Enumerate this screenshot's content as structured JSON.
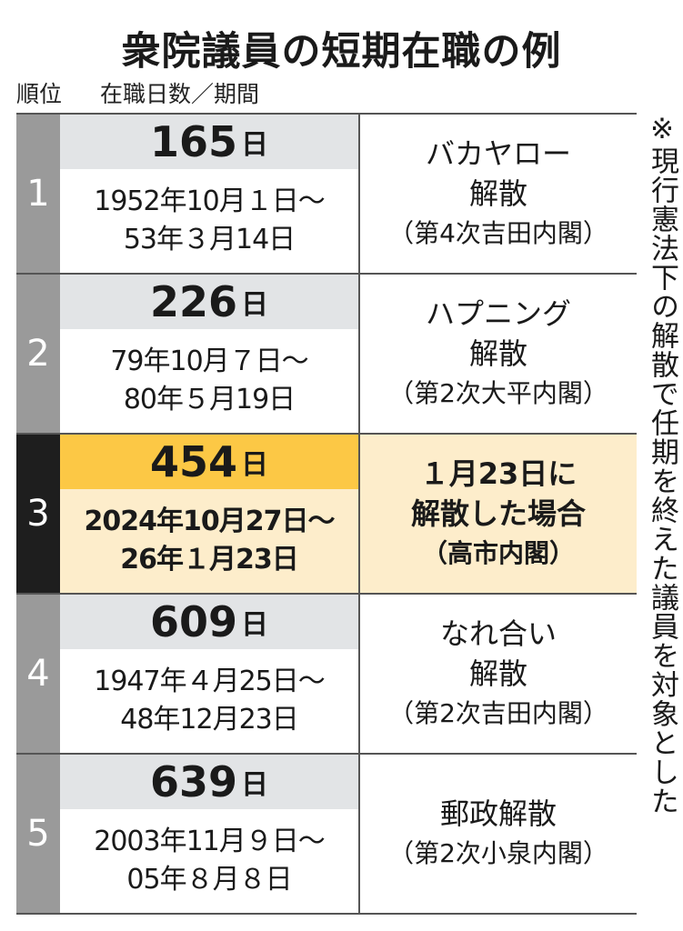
{
  "title": "衆院議員の短期在職の例",
  "headers": {
    "rank": "順位",
    "days_period": "在職日数／期間"
  },
  "note": "※現行憲法下の解散で任期を終えた議員を対象とした",
  "colors": {
    "highlight_rank": "#1e1e1e",
    "highlight_days": "#fcc845",
    "highlight_body": "#fdedcb",
    "rank_bg": "#9a9a9a",
    "days_bg": "#e2e4e6"
  },
  "chart_data": {
    "type": "table",
    "columns": [
      "順位",
      "在職日数／期間",
      ""
    ],
    "rows": [
      {
        "rank": "1",
        "days": "165",
        "unit": "日",
        "period_start": "1952年10月１日～",
        "period_end": "53年３月14日",
        "event": "バカヤロー",
        "event2": "解散",
        "cabinet": "（第4次吉田内閣）",
        "highlighted": false
      },
      {
        "rank": "2",
        "days": "226",
        "unit": "日",
        "period_start": "79年10月７日～",
        "period_end": "80年５月19日",
        "event": "ハプニング",
        "event2": "解散",
        "cabinet": "（第2次大平内閣）",
        "highlighted": false
      },
      {
        "rank": "3",
        "days": "454",
        "unit": "日",
        "period_start": "2024年10月27日～",
        "period_end": "26年１月23日",
        "event": "１月23日に",
        "event2": "解散した場合",
        "cabinet": "（高市内閣）",
        "highlighted": true
      },
      {
        "rank": "4",
        "days": "609",
        "unit": "日",
        "period_start": "1947年４月25日～",
        "period_end": "48年12月23日",
        "event": "なれ合い",
        "event2": "解散",
        "cabinet": "（第2次吉田内閣）",
        "highlighted": false
      },
      {
        "rank": "5",
        "days": "639",
        "unit": "日",
        "period_start": "2003年11月９日～",
        "period_end": "05年８月８日",
        "event": "郵政解散",
        "event2": "",
        "cabinet": "（第2次小泉内閣）",
        "highlighted": false
      }
    ]
  }
}
